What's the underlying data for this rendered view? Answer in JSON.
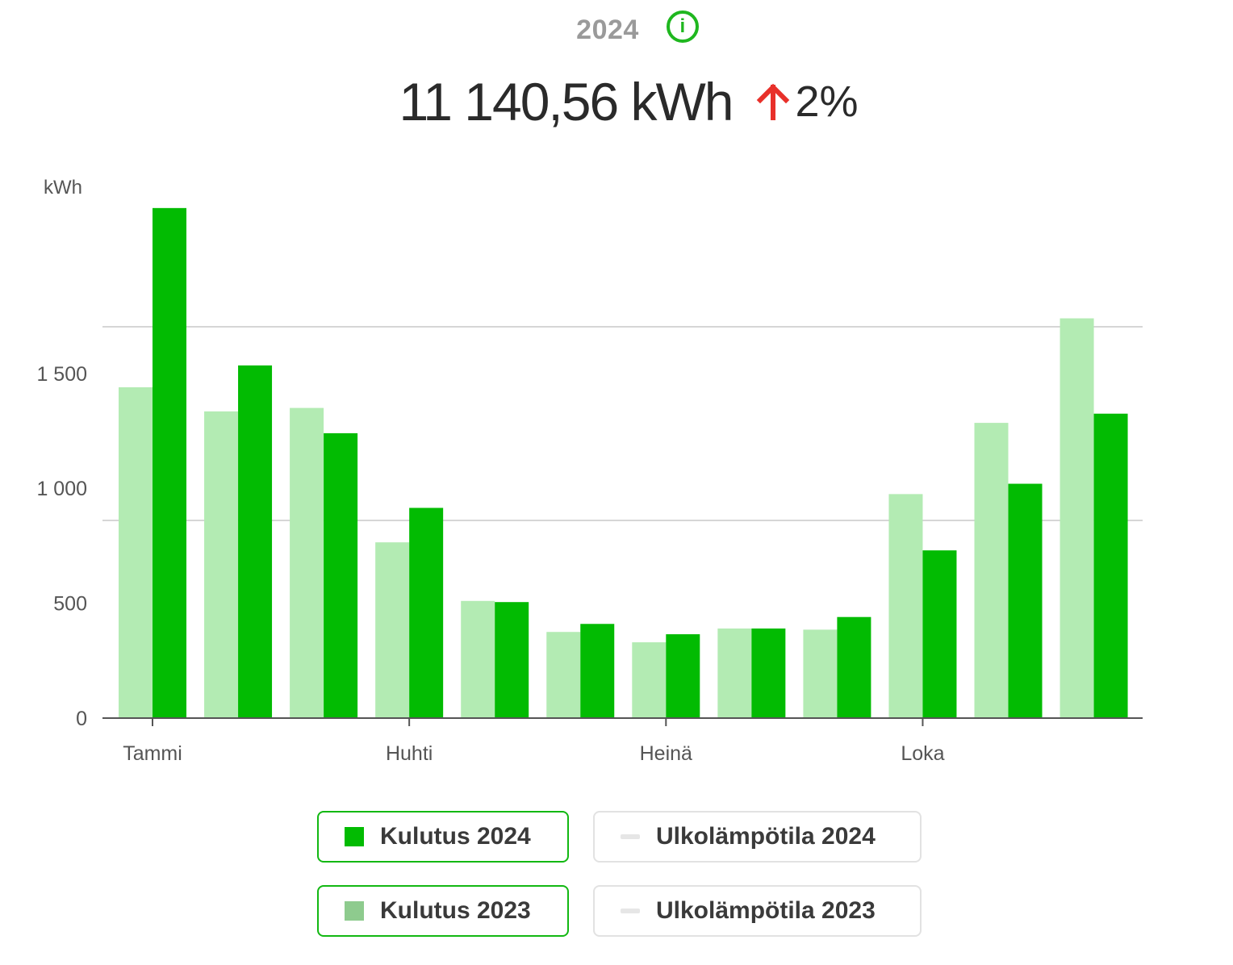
{
  "header": {
    "year": "2024",
    "info_icon": "info-circle-icon",
    "total": "11 140,56 kWh",
    "change_icon": "arrow-up-icon",
    "change": "2%"
  },
  "colors": {
    "current": "#02bb02",
    "previous": "#b3ebb3",
    "legend_previous": "#8ecb8e",
    "temperature": "#e6e6e6",
    "change_up": "#e8302a",
    "grid": "#c8c8c8",
    "axis_text": "#555555"
  },
  "legend": [
    {
      "label": "Kulutus 2024",
      "type": "swatch",
      "active": true
    },
    {
      "label": "Ulkolämpötila 2024",
      "type": "dash",
      "active": false
    },
    {
      "label": "Kulutus 2023",
      "type": "swatch",
      "active": true
    },
    {
      "label": "Ulkolämpötila 2023",
      "type": "dash",
      "active": false
    }
  ],
  "chart_data": {
    "type": "bar",
    "ylabel": "kWh",
    "y_ticks": [
      0,
      500,
      1000,
      1500
    ],
    "y_tick_labels": [
      "0",
      "500",
      "1 000",
      "1 500"
    ],
    "ylim": [
      0,
      2230
    ],
    "x_tick_labels": [
      "Tammi",
      "",
      "",
      "Huhti",
      "",
      "",
      "Heinä",
      "",
      "",
      "Loka",
      "",
      ""
    ],
    "categories": [
      "1",
      "2",
      "3",
      "4",
      "5",
      "6",
      "7",
      "8",
      "9",
      "10",
      "11",
      "12"
    ],
    "series": [
      {
        "name": "Kulutus 2023",
        "values": [
          1440,
          1335,
          1350,
          765,
          510,
          375,
          330,
          390,
          385,
          975,
          1285,
          1740
        ]
      },
      {
        "name": "Kulutus 2024",
        "values": [
          2220,
          1535,
          1240,
          915,
          505,
          410,
          365,
          390,
          440,
          730,
          1020,
          1325
        ]
      }
    ],
    "grid": true,
    "legend_position": "bottom"
  }
}
